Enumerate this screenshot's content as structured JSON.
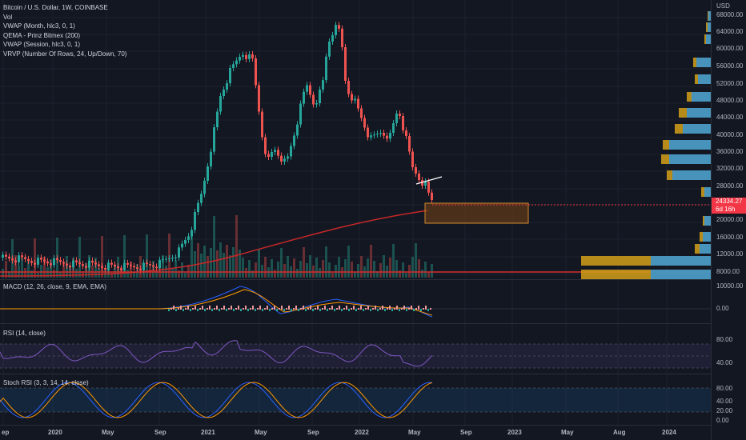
{
  "main_legend": {
    "title": "Bitcoin / U.S. Dollar, 1W, COINBASE",
    "indicators": [
      "Vol",
      "VWAP (Month, hlc3, 0, 1)",
      "QEMA - Prinz Bitmex (200)",
      "VWAP (Session, hlc3, 0, 1)",
      "VRVP (Number Of Rows, 24, Up/Down, 70)"
    ]
  },
  "price_axis": {
    "currency": "USD",
    "labels": [
      "68000.00",
      "64000.00",
      "60000.00",
      "56000.00",
      "52000.00",
      "48000.00",
      "44000.00",
      "40000.00",
      "36000.00",
      "32000.00",
      "28000.00",
      "20000.00",
      "16000.00",
      "12000.00",
      "8000.00"
    ],
    "current_price": "24334.27",
    "countdown": "6d 16h"
  },
  "macd_pane": {
    "label": "MACD (12, 26, close, 9, EMA, EMA)",
    "axis_labels": [
      "10000.00",
      "0.00"
    ]
  },
  "rsi_pane": {
    "label": "RSI (14, close)",
    "axis_labels": [
      "80.00",
      "40.00"
    ]
  },
  "stoch_pane": {
    "label": "Stoch RSI (3, 3, 14, 14, close)",
    "axis_labels": [
      "80.00",
      "40.00",
      "20.00",
      "0.00"
    ]
  },
  "time_axis": [
    "ep",
    "2020",
    "May",
    "Sep",
    "2021",
    "May",
    "Sep",
    "2022",
    "May",
    "Sep",
    "2023",
    "May",
    "Aug",
    "2024"
  ],
  "colors": {
    "up": "#26a69a",
    "down": "#ef5350",
    "vwap": "#f23645",
    "accent": "#2962ff",
    "volume_up": "#2196f3",
    "volume_down": "#d4a017"
  }
}
